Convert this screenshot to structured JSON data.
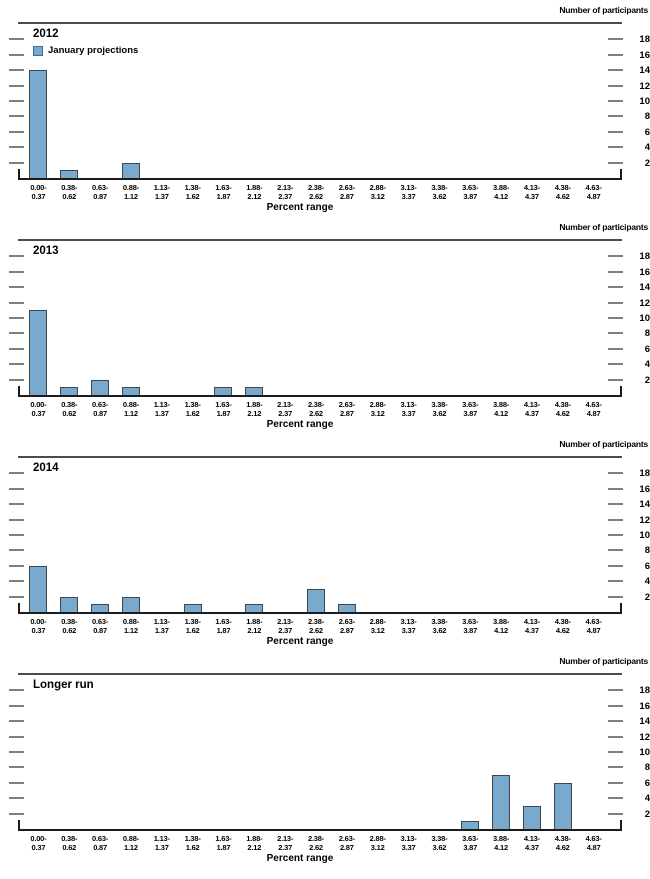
{
  "chart_data": {
    "type": "bar",
    "right_axis_label": "Number of participants",
    "xlabel": "Percent range",
    "legend_label": "January projections",
    "ylim": [
      0,
      20
    ],
    "yticks": [
      2,
      4,
      6,
      8,
      10,
      12,
      14,
      16,
      18
    ],
    "grid": "off",
    "legend_position": "top-left of first panel",
    "categories": [
      "0.00-0.37",
      "0.38-0.62",
      "0.63-0.87",
      "0.88-1.12",
      "1.13-1.37",
      "1.38-1.62",
      "1.63-1.87",
      "1.88-2.12",
      "2.13-2.37",
      "2.38-2.62",
      "2.63-2.87",
      "2.88-3.12",
      "3.13-3.37",
      "3.38-3.62",
      "3.63-3.87",
      "3.88-4.12",
      "4.13-4.37",
      "4.38-4.62",
      "4.63-4.87"
    ],
    "panels": [
      {
        "title": "2012",
        "show_legend": true,
        "values": [
          14,
          1,
          0,
          2,
          0,
          0,
          0,
          0,
          0,
          0,
          0,
          0,
          0,
          0,
          0,
          0,
          0,
          0,
          0
        ]
      },
      {
        "title": "2013",
        "show_legend": false,
        "values": [
          11,
          1,
          2,
          1,
          0,
          0,
          1,
          1,
          0,
          0,
          0,
          0,
          0,
          0,
          0,
          0,
          0,
          0,
          0
        ]
      },
      {
        "title": "2014",
        "show_legend": false,
        "values": [
          6,
          2,
          1,
          2,
          0,
          1,
          0,
          1,
          0,
          3,
          1,
          0,
          0,
          0,
          0,
          0,
          0,
          0,
          0
        ]
      },
      {
        "title": "Longer run",
        "show_legend": false,
        "values": [
          0,
          0,
          0,
          0,
          0,
          0,
          0,
          0,
          0,
          0,
          0,
          0,
          0,
          0,
          1,
          7,
          3,
          6,
          0
        ]
      }
    ],
    "colors": {
      "bar_fill": "#7aa9ce",
      "bar_border": "#3f464d",
      "legend_swatch_border": "#2f6da8",
      "tick_dash": "#7f7f7f",
      "axis_line": "#1b1b1b",
      "top_border": "#4c4c4e"
    }
  }
}
